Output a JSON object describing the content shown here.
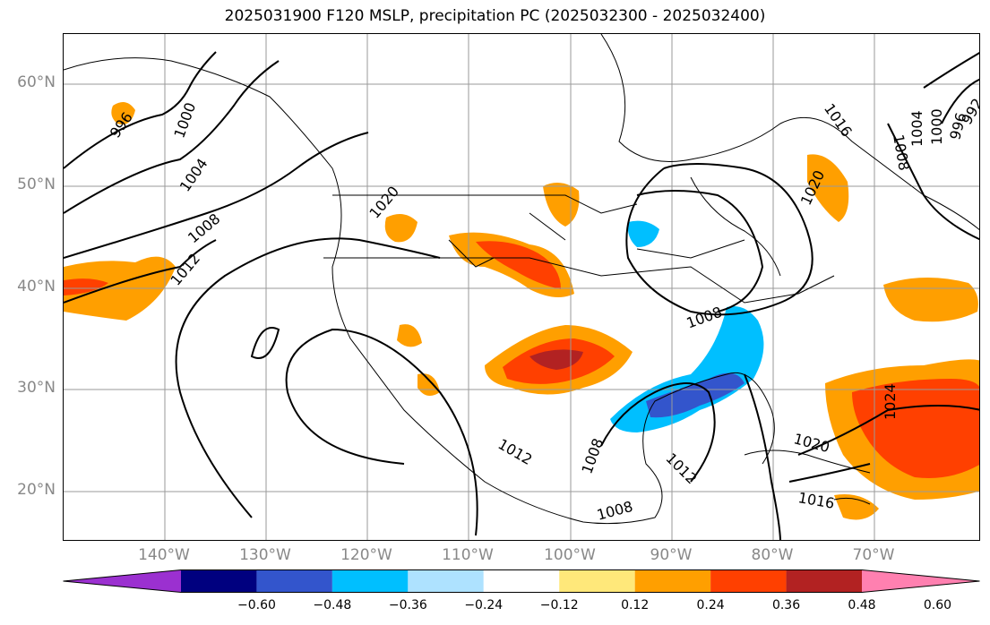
{
  "title": "2025031900 F120 MSLP, precipitation PC (2025032300 - 2025032400)",
  "lat_labels": [
    "60°N",
    "50°N",
    "40°N",
    "30°N",
    "20°N"
  ],
  "lon_labels": [
    "140°W",
    "130°W",
    "120°W",
    "110°W",
    "100°W",
    "90°W",
    "80°W",
    "70°W"
  ],
  "colorbar": {
    "ticks": [
      "−0.60",
      "−0.48",
      "−0.36",
      "−0.24",
      "−0.12",
      "0.12",
      "0.24",
      "0.36",
      "0.48",
      "0.60"
    ],
    "colors": [
      "#9b30d0",
      "#00007f",
      "#3355cc",
      "#00bfff",
      "#aee2ff",
      "#ffffff",
      "#ffe87a",
      "#ff9f00",
      "#ff4000",
      "#b22222",
      "#ff80b0"
    ]
  },
  "contour_labels": [
    "996",
    "1000",
    "1004",
    "1008",
    "1012",
    "1020",
    "1008",
    "1012",
    "1008",
    "1012",
    "1008",
    "1016",
    "1020",
    "1024",
    "1020",
    "1016",
    "1008",
    "1004",
    "1000",
    "996",
    "992"
  ]
}
